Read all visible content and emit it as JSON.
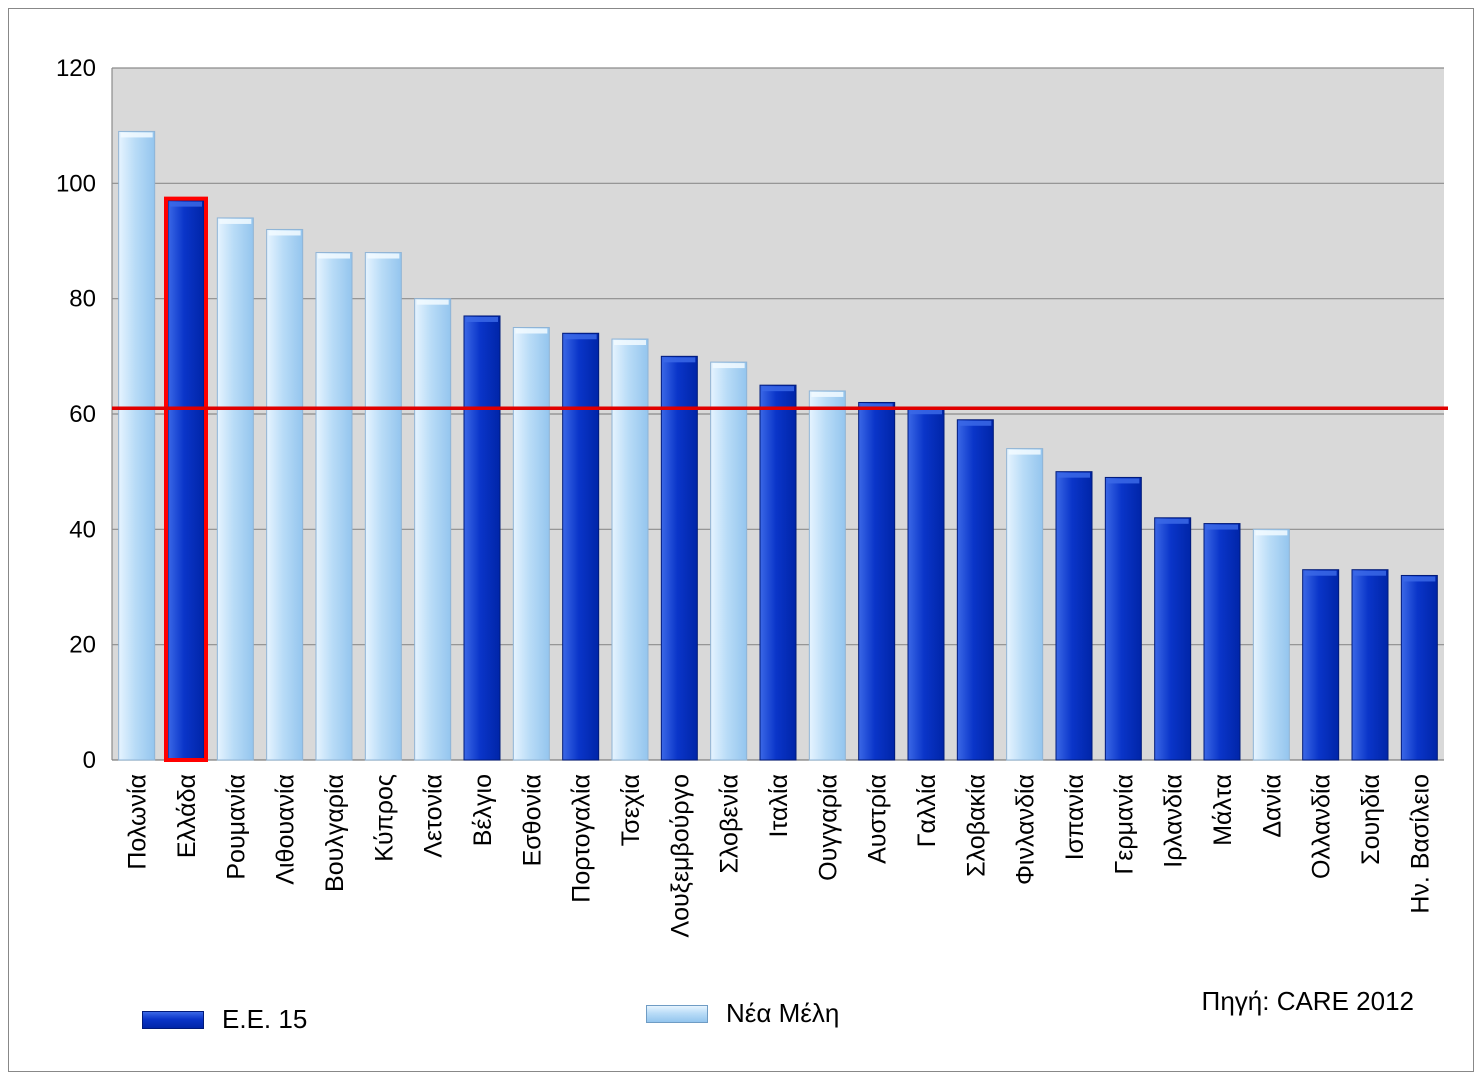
{
  "chart_data": {
    "type": "bar",
    "categories": [
      "Πολωνία",
      "Ελλάδα",
      "Ρουμανία",
      "Λιθουανία",
      "Βουλγαρία",
      "Κύπρος",
      "Λετονία",
      "Βέλγιο",
      "Εσθονία",
      "Πορτογαλία",
      "Τσεχία",
      "Λουξεμβούργο",
      "Σλοβενία",
      "Ιταλία",
      "Ουγγαρία",
      "Αυστρία",
      "Γαλλία",
      "Σλοβακία",
      "Φινλανδία",
      "Ισπανία",
      "Γερμανία",
      "Ιρλανδία",
      "Μάλτα",
      "Δανία",
      "Ολλανδία",
      "Σουηδία",
      "Ην. Βασίλειο"
    ],
    "values": [
      109,
      97,
      94,
      92,
      88,
      88,
      80,
      77,
      75,
      74,
      73,
      70,
      69,
      65,
      64,
      62,
      61,
      59,
      54,
      50,
      49,
      42,
      41,
      40,
      33,
      33,
      32
    ],
    "groups": [
      "new",
      "eu15",
      "new",
      "new",
      "new",
      "new",
      "new",
      "eu15",
      "new",
      "eu15",
      "new",
      "eu15",
      "new",
      "eu15",
      "new",
      "eu15",
      "eu15",
      "eu15",
      "new",
      "eu15",
      "eu15",
      "eu15",
      "eu15",
      "new",
      "eu15",
      "eu15",
      "eu15"
    ],
    "highlight_category": "Ελλάδα",
    "reference_line": 61,
    "ylim": [
      0,
      120
    ],
    "yticks": [
      0,
      20,
      40,
      60,
      80,
      100,
      120
    ],
    "grid": true,
    "legend": [
      {
        "key": "eu15",
        "label": "Ε.Ε. 15"
      },
      {
        "key": "new",
        "label": "Νέα Μέλη"
      }
    ],
    "source": "Πηγή: CARE 2012",
    "title": "",
    "xlabel": "",
    "ylabel": ""
  },
  "colors": {
    "plot_background": "#d9d9d9",
    "gridline": "#8c8c8c",
    "eu15_dark": "#0025a8",
    "eu15_mid": "#0a35c9",
    "eu15_light": "#3b68e6",
    "new_light": "#e6f4ff",
    "new_mid": "#b9dcf7",
    "new_dark": "#94c5ee",
    "highlight_outline": "#ff0000",
    "reference_line": "#e00000"
  }
}
